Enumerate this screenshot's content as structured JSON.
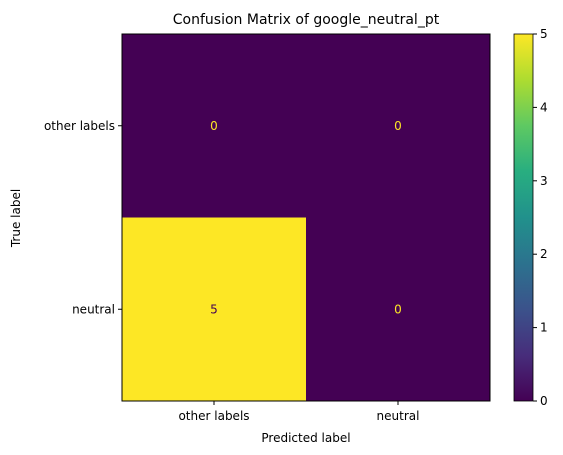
{
  "chart_data": {
    "type": "heatmap",
    "title": "Confusion Matrix of google_neutral_pt",
    "xlabel": "Predicted label",
    "ylabel": "True label",
    "x_categories": [
      "other labels",
      "neutral"
    ],
    "y_categories": [
      "other labels",
      "neutral"
    ],
    "values": [
      [
        0,
        0
      ],
      [
        5,
        0
      ]
    ],
    "colormap": "viridis",
    "colorbar": {
      "min": 0,
      "max": 5,
      "ticks": [
        0,
        1,
        2,
        3,
        4,
        5
      ]
    },
    "colors": {
      "low": "#440154",
      "high": "#fde725"
    }
  }
}
